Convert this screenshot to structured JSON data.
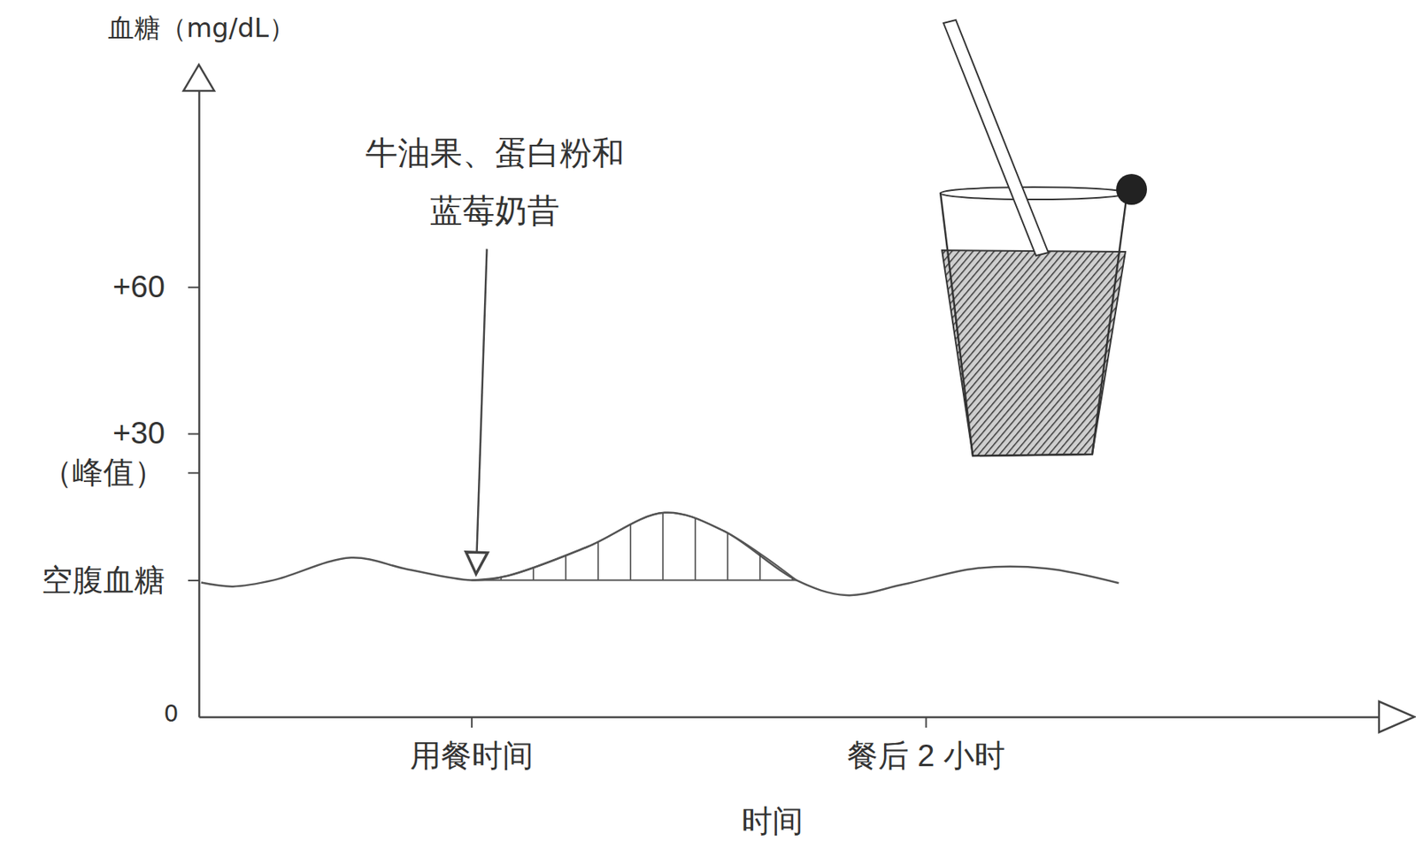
{
  "chart_data": {
    "type": "line",
    "y_label": "血糖（mg/dL）",
    "x_label": "时间",
    "x": [
      -1.19,
      -1.05,
      -0.87,
      -0.53,
      -0.28,
      0,
      0.16,
      0.51,
      0.85,
      1.11,
      1.43,
      1.65,
      1.9,
      2.22,
      2.53,
      2.85
    ],
    "series": [
      {
        "type": "line",
        "color": "#555555",
        "values": [
          -0.5,
          -1.3,
          0,
          4.6,
          2.2,
          0,
          0.9,
          6.8,
          13.8,
          10.1,
          0,
          -3.1,
          -0.9,
          2.4,
          2.4,
          -0.6
        ]
      },
      {
        "type": "area",
        "color": "#555555",
        "values": [
          null,
          null,
          null,
          null,
          null,
          0,
          0.9,
          6.8,
          13.8,
          10.1,
          0,
          null,
          null,
          null,
          null,
          null
        ]
      }
    ],
    "xlim": [
      -1.2,
      4.05
    ],
    "xticks": [
      {
        "value": 0,
        "label": "用餐时间"
      },
      {
        "value": 2,
        "label": "餐后 2 小时"
      }
    ],
    "ylim": [
      -28,
      103
    ],
    "yticks": [
      {
        "value": 0,
        "label": "空腹血糖"
      },
      {
        "value": 22,
        "label": "（峰值）"
      },
      {
        "value": 30,
        "label": "+30"
      },
      {
        "value": 60,
        "label": "+60"
      }
    ],
    "grid": false,
    "annotations": [
      {
        "text": [
          "牛油果、蛋白粉和",
          "蓝莓奶昔"
        ],
        "x": 0,
        "y": 0
      },
      {
        "text": "0"
      }
    ]
  }
}
